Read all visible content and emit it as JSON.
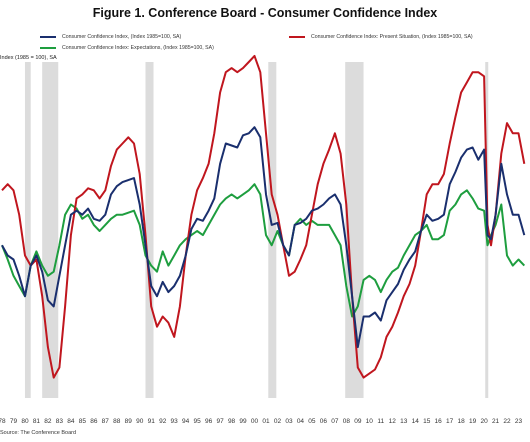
{
  "chart_data": {
    "type": "line",
    "title": "Figure 1. Conference Board - Consumer Confidence Index",
    "ylabel": "Index (1985 = 100), SA",
    "source": "Source: The Conference Board",
    "xlim": [
      1978,
      2024
    ],
    "ylim": [
      10,
      175
    ],
    "grid": false,
    "legend_position": "top",
    "x_tick_labels": [
      "78",
      "79",
      "80",
      "81",
      "82",
      "83",
      "84",
      "85",
      "86",
      "87",
      "88",
      "89",
      "90",
      "91",
      "92",
      "93",
      "94",
      "95",
      "96",
      "97",
      "98",
      "99",
      "00",
      "01",
      "02",
      "03",
      "04",
      "05",
      "06",
      "07",
      "08",
      "09",
      "10",
      "11",
      "12",
      "13",
      "14",
      "15",
      "16",
      "17",
      "18",
      "19",
      "20",
      "21",
      "22",
      "23"
    ],
    "recessions": [
      [
        1980.0,
        1980.5
      ],
      [
        1981.5,
        1982.9
      ],
      [
        1990.5,
        1991.2
      ],
      [
        2001.2,
        2001.9
      ],
      [
        2007.9,
        2009.5
      ],
      [
        2020.1,
        2020.3
      ]
    ],
    "series": [
      {
        "name": "Consumer Confidence Index, (Index 1985=100, SA)",
        "color": "#1a2f6e",
        "x": [
          1978.0,
          1978.5,
          1979.0,
          1979.5,
          1980.0,
          1980.5,
          1981.0,
          1981.5,
          1982.0,
          1982.5,
          1983.0,
          1983.5,
          1984.0,
          1984.5,
          1985.0,
          1985.5,
          1986.0,
          1986.5,
          1987.0,
          1987.5,
          1988.0,
          1988.5,
          1989.0,
          1989.5,
          1990.0,
          1990.5,
          1991.0,
          1991.5,
          1992.0,
          1992.5,
          1993.0,
          1993.5,
          1994.0,
          1994.5,
          1995.0,
          1995.5,
          1996.0,
          1996.5,
          1997.0,
          1997.5,
          1998.0,
          1998.5,
          1999.0,
          1999.5,
          2000.0,
          2000.5,
          2001.0,
          2001.5,
          2002.0,
          2002.5,
          2003.0,
          2003.5,
          2004.0,
          2004.5,
          2005.0,
          2005.5,
          2006.0,
          2006.5,
          2007.0,
          2007.5,
          2008.0,
          2008.5,
          2009.0,
          2009.5,
          2010.0,
          2010.5,
          2011.0,
          2011.5,
          2012.0,
          2012.5,
          2013.0,
          2013.5,
          2014.0,
          2014.5,
          2015.0,
          2015.5,
          2016.0,
          2016.5,
          2017.0,
          2017.5,
          2018.0,
          2018.5,
          2019.0,
          2019.5,
          2020.0,
          2020.3,
          2020.6,
          2021.0,
          2021.5,
          2022.0,
          2022.5,
          2023.0,
          2023.5
        ],
        "y": [
          85,
          80,
          78,
          70,
          60,
          75,
          80,
          72,
          58,
          55,
          70,
          85,
          100,
          102,
          100,
          103,
          98,
          97,
          100,
          110,
          114,
          116,
          117,
          118,
          105,
          85,
          65,
          60,
          67,
          62,
          65,
          70,
          80,
          93,
          98,
          97,
          102,
          108,
          125,
          135,
          134,
          133,
          139,
          140,
          143,
          138,
          110,
          95,
          96,
          85,
          80,
          95,
          96,
          98,
          102,
          103,
          105,
          108,
          110,
          105,
          85,
          60,
          35,
          50,
          50,
          52,
          48,
          58,
          62,
          66,
          73,
          78,
          82,
          92,
          100,
          97,
          98,
          100,
          115,
          121,
          128,
          132,
          133,
          127,
          132,
          90,
          88,
          100,
          125,
          110,
          100,
          100,
          90
        ]
      },
      {
        "name": "Consumer Confidence Index: Present Situation, (Index 1985=100, SA)",
        "color": "#c0161e",
        "x": [
          1978.0,
          1978.5,
          1979.0,
          1979.5,
          1980.0,
          1980.5,
          1981.0,
          1981.5,
          1982.0,
          1982.5,
          1983.0,
          1983.5,
          1984.0,
          1984.5,
          1985.0,
          1985.5,
          1986.0,
          1986.5,
          1987.0,
          1987.5,
          1988.0,
          1988.5,
          1989.0,
          1989.5,
          1990.0,
          1990.5,
          1991.0,
          1991.5,
          1992.0,
          1992.5,
          1993.0,
          1993.5,
          1994.0,
          1994.5,
          1995.0,
          1995.5,
          1996.0,
          1996.5,
          1997.0,
          1997.5,
          1998.0,
          1998.5,
          1999.0,
          1999.5,
          2000.0,
          2000.5,
          2001.0,
          2001.5,
          2002.0,
          2002.5,
          2003.0,
          2003.5,
          2004.0,
          2004.5,
          2005.0,
          2005.5,
          2006.0,
          2006.5,
          2007.0,
          2007.5,
          2008.0,
          2008.5,
          2009.0,
          2009.5,
          2010.0,
          2010.5,
          2011.0,
          2011.5,
          2012.0,
          2012.5,
          2013.0,
          2013.5,
          2014.0,
          2014.5,
          2015.0,
          2015.5,
          2016.0,
          2016.5,
          2017.0,
          2017.5,
          2018.0,
          2018.5,
          2019.0,
          2019.5,
          2020.0,
          2020.3,
          2020.6,
          2021.0,
          2021.5,
          2022.0,
          2022.5,
          2023.0,
          2023.5
        ],
        "y": [
          112,
          115,
          112,
          100,
          80,
          75,
          78,
          60,
          35,
          20,
          25,
          55,
          90,
          108,
          110,
          113,
          112,
          108,
          112,
          124,
          132,
          135,
          138,
          135,
          120,
          90,
          55,
          45,
          50,
          47,
          40,
          55,
          80,
          100,
          112,
          118,
          125,
          140,
          160,
          170,
          172,
          170,
          172,
          175,
          178,
          170,
          140,
          110,
          100,
          85,
          70,
          72,
          78,
          85,
          100,
          115,
          125,
          132,
          140,
          130,
          105,
          60,
          25,
          20,
          22,
          24,
          30,
          40,
          45,
          52,
          60,
          66,
          75,
          92,
          110,
          115,
          115,
          120,
          135,
          148,
          160,
          165,
          170,
          170,
          168,
          95,
          85,
          100,
          130,
          145,
          140,
          140,
          125
        ]
      },
      {
        "name": "Consumer Confidence Index: Expectations, (Index 1985=100, SA)",
        "color": "#1e9e3f",
        "x": [
          1978.0,
          1978.5,
          1979.0,
          1979.5,
          1980.0,
          1980.5,
          1981.0,
          1981.5,
          1982.0,
          1982.5,
          1983.0,
          1983.5,
          1984.0,
          1984.5,
          1985.0,
          1985.5,
          1986.0,
          1986.5,
          1987.0,
          1987.5,
          1988.0,
          1988.5,
          1989.0,
          1989.5,
          1990.0,
          1990.5,
          1991.0,
          1991.5,
          1992.0,
          1992.5,
          1993.0,
          1993.5,
          1994.0,
          1994.5,
          1995.0,
          1995.5,
          1996.0,
          1996.5,
          1997.0,
          1997.5,
          1998.0,
          1998.5,
          1999.0,
          1999.5,
          2000.0,
          2000.5,
          2001.0,
          2001.5,
          2002.0,
          2002.5,
          2003.0,
          2003.5,
          2004.0,
          2004.5,
          2005.0,
          2005.5,
          2006.0,
          2006.5,
          2007.0,
          2007.5,
          2008.0,
          2008.5,
          2009.0,
          2009.5,
          2010.0,
          2010.5,
          2011.0,
          2011.5,
          2012.0,
          2012.5,
          2013.0,
          2013.5,
          2014.0,
          2014.5,
          2015.0,
          2015.5,
          2016.0,
          2016.5,
          2017.0,
          2017.5,
          2018.0,
          2018.5,
          2019.0,
          2019.5,
          2020.0,
          2020.3,
          2020.6,
          2021.0,
          2021.5,
          2022.0,
          2022.5,
          2023.0,
          2023.5
        ],
        "y": [
          85,
          78,
          70,
          65,
          60,
          75,
          82,
          75,
          70,
          72,
          85,
          100,
          105,
          103,
          98,
          100,
          95,
          92,
          95,
          98,
          100,
          100,
          101,
          102,
          95,
          80,
          75,
          72,
          82,
          75,
          80,
          85,
          88,
          90,
          92,
          90,
          95,
          100,
          105,
          108,
          110,
          108,
          110,
          112,
          115,
          110,
          90,
          85,
          92,
          85,
          80,
          95,
          98,
          95,
          97,
          95,
          95,
          95,
          90,
          85,
          65,
          50,
          55,
          68,
          70,
          68,
          62,
          68,
          72,
          74,
          80,
          85,
          90,
          92,
          95,
          88,
          88,
          90,
          102,
          105,
          110,
          112,
          108,
          103,
          102,
          85,
          90,
          95,
          105,
          80,
          75,
          78,
          75
        ]
      }
    ]
  }
}
